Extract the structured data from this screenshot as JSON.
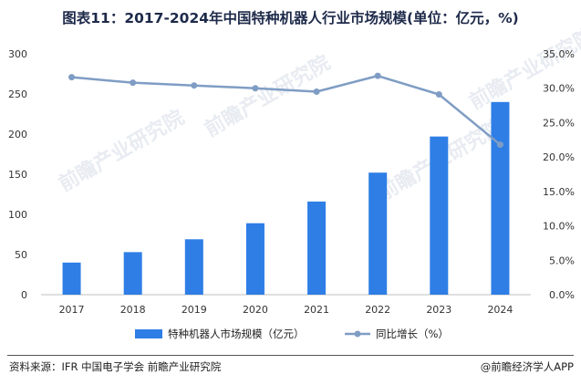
{
  "title": "图表11：2017-2024年中国特种机器人行业市场规模(单位：亿元，%)",
  "footer": {
    "source": "资料来源：IFR 中国电子学会 前瞻产业研究院",
    "brand": "@前瞻经济学人APP"
  },
  "watermark": "前瞻产业研究院",
  "colors": {
    "bar": "#2e7ee6",
    "line": "#7f9dc4",
    "title": "#1e2a4a"
  },
  "chart_data": {
    "type": "bar",
    "categories": [
      "2017",
      "2018",
      "2019",
      "2020",
      "2021",
      "2022",
      "2023",
      "2024"
    ],
    "series": [
      {
        "name": "特种机器人市场规模（亿元）",
        "type": "bar",
        "axis": "left",
        "values": [
          40,
          53,
          69,
          89,
          116,
          152,
          197,
          240
        ]
      },
      {
        "name": "同比增长（%）",
        "type": "line",
        "axis": "right",
        "values": [
          31.6,
          30.8,
          30.4,
          30.0,
          29.5,
          31.8,
          29.1,
          21.8
        ]
      }
    ],
    "ylim_left": [
      0,
      300
    ],
    "yticks_left": [
      "0",
      "50",
      "100",
      "150",
      "200",
      "250",
      "300"
    ],
    "ylim_right": [
      0,
      35
    ],
    "yticks_right": [
      "0.0%",
      "5.0%",
      "10.0%",
      "15.0%",
      "20.0%",
      "25.0%",
      "30.0%",
      "35.0%"
    ],
    "grid": false,
    "legend_position": "bottom"
  }
}
